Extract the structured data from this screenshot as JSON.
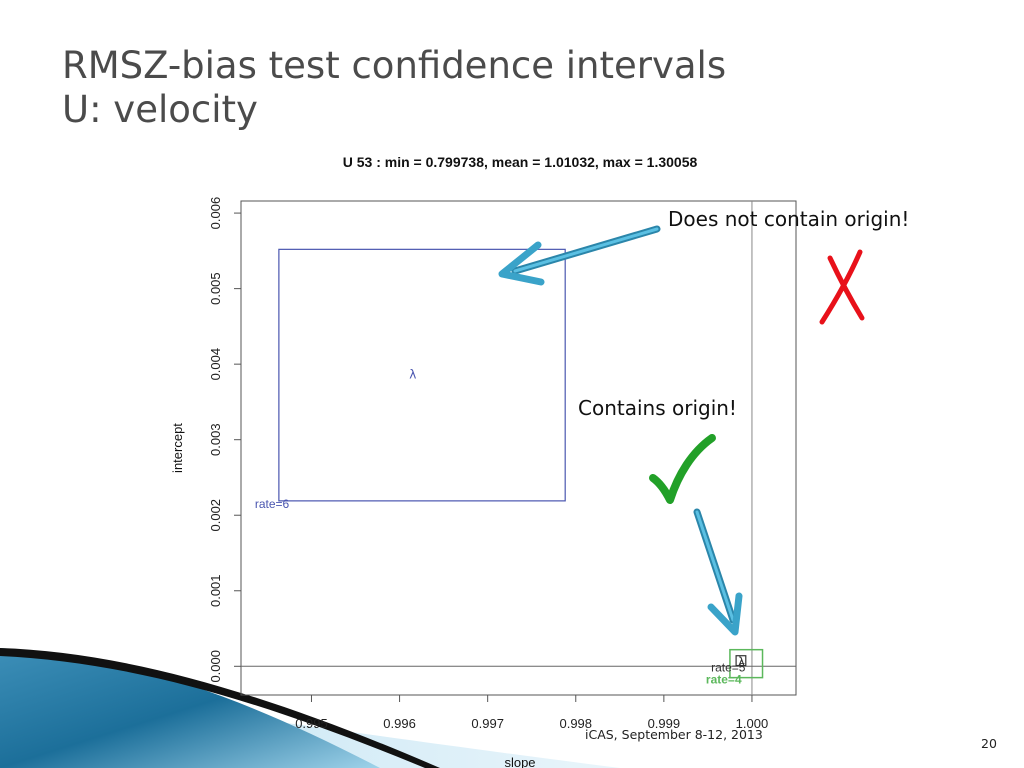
{
  "slide": {
    "title_line1": "RMSZ-bias test confidence intervals",
    "title_line2": "U: velocity",
    "footer": "iCAS, September 8-12, 2013",
    "page_number": "20"
  },
  "annotations": {
    "not_contain": "Does not contain origin!",
    "contains": "Contains origin!",
    "cross_mark": "✗",
    "check_mark": "✓"
  },
  "chart_data": {
    "type": "scatter",
    "title": "U 53 : min = 0.799738, mean = 1.01032, max = 1.30058",
    "xlabel": "slope",
    "ylabel": "intercept",
    "xlim": [
      0.9942,
      1.0005
    ],
    "ylim": [
      -0.00038,
      0.00616
    ],
    "x_ticks": [
      {
        "value": 0.995,
        "label": "0.995"
      },
      {
        "value": 0.996,
        "label": "0.996"
      },
      {
        "value": 0.997,
        "label": "0.997"
      },
      {
        "value": 0.998,
        "label": "0.998"
      },
      {
        "value": 0.999,
        "label": "0.999"
      },
      {
        "value": 1.0,
        "label": "1.000"
      }
    ],
    "y_ticks": [
      {
        "value": 0.0,
        "label": "0.000"
      },
      {
        "value": 0.001,
        "label": "0.001"
      },
      {
        "value": 0.002,
        "label": "0.002"
      },
      {
        "value": 0.003,
        "label": "0.003"
      },
      {
        "value": 0.004,
        "label": "0.004"
      },
      {
        "value": 0.005,
        "label": "0.005"
      },
      {
        "value": 0.006,
        "label": "0.006"
      }
    ],
    "reference_lines": {
      "x": 1.0,
      "y": 0.0
    },
    "boxes": [
      {
        "label": "rate=6",
        "color": "#4a56b0",
        "x0": 0.99463,
        "x1": 0.99788,
        "y0": 0.00219,
        "y1": 0.00552,
        "center_symbol": "λ",
        "center": [
          0.99615,
          0.00386
        ]
      },
      {
        "label": "rate=5",
        "color": "#333333",
        "x0": 0.99982,
        "x1": 0.99993,
        "y0": 1e-05,
        "y1": 0.00014,
        "center_symbol": "λ",
        "center": [
          0.99988,
          6e-05
        ]
      },
      {
        "label": "rate=4",
        "color": "#5cb85c",
        "x0": 0.99975,
        "x1": 1.00012,
        "y0": -0.00015,
        "y1": 0.00022,
        "center_symbol": "",
        "center": [
          0.99993,
          3e-05
        ]
      }
    ]
  },
  "colors": {
    "arrow": "#3aa3c9",
    "cross": "#e8111a",
    "check": "#22a028",
    "title": "#4b4b4b"
  }
}
